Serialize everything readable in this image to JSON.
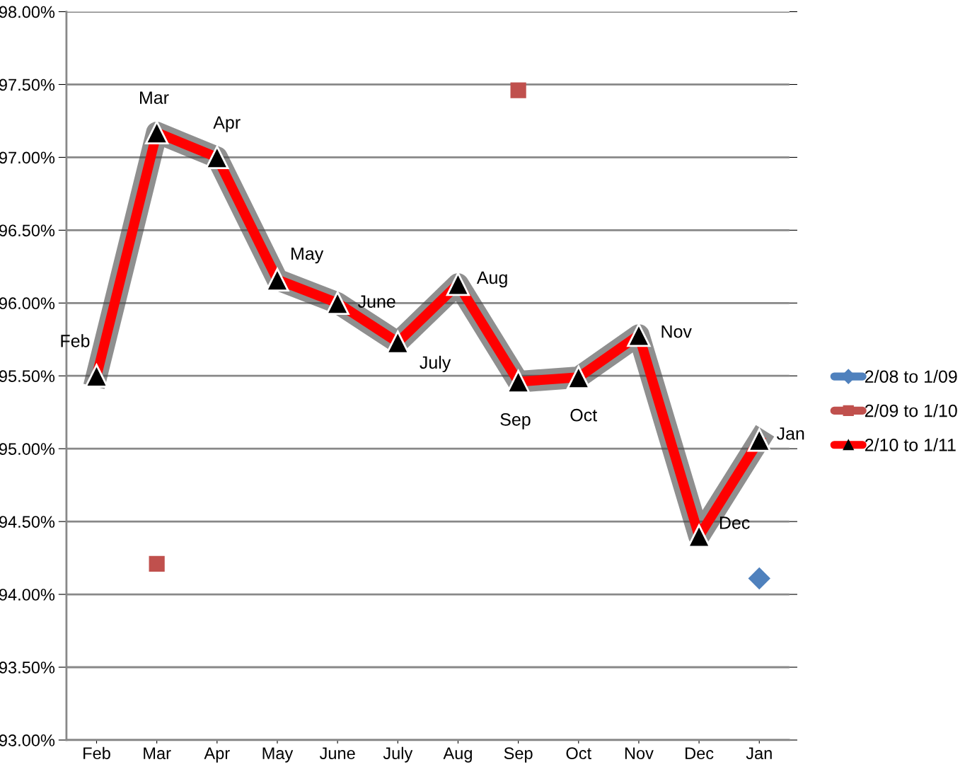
{
  "chart_data": {
    "type": "line",
    "categories": [
      "Feb",
      "Mar",
      "Apr",
      "May",
      "June",
      "July",
      "Aug",
      "Sep",
      "Oct",
      "Nov",
      "Dec",
      "Jan"
    ],
    "series": [
      {
        "name": "2/08 to 1/09",
        "type": "scatter",
        "color": "#4f81bd",
        "marker": "diamond",
        "values": [
          null,
          null,
          null,
          null,
          null,
          null,
          null,
          null,
          null,
          null,
          null,
          94.11
        ]
      },
      {
        "name": "2/09 to 1/10",
        "type": "scatter",
        "color": "#c0504d",
        "marker": "square",
        "values": [
          null,
          94.21,
          null,
          null,
          null,
          null,
          null,
          97.46,
          null,
          null,
          null,
          null
        ]
      },
      {
        "name": "2/10 to 1/11",
        "color": "#ff0000",
        "marker": "triangle",
        "values": [
          95.5,
          97.17,
          97.0,
          96.16,
          96.0,
          95.73,
          96.13,
          95.46,
          95.49,
          95.78,
          94.4,
          95.06
        ]
      }
    ],
    "annotations": [
      {
        "text": "Feb",
        "x": "Feb",
        "y": 95.5
      },
      {
        "text": "Mar",
        "x": "Mar",
        "y": 97.17
      },
      {
        "text": "Apr",
        "x": "Apr",
        "y": 97.0
      },
      {
        "text": "May",
        "x": "May",
        "y": 96.16
      },
      {
        "text": "June",
        "x": "June",
        "y": 96.0
      },
      {
        "text": "July",
        "x": "July",
        "y": 95.73
      },
      {
        "text": "Aug",
        "x": "Aug",
        "y": 96.13
      },
      {
        "text": "Sep",
        "x": "Sep",
        "y": 95.46
      },
      {
        "text": "Oct",
        "x": "Oct",
        "y": 95.49
      },
      {
        "text": "Nov",
        "x": "Nov",
        "y": 95.78
      },
      {
        "text": "Dec",
        "x": "Dec",
        "y": 94.4
      },
      {
        "text": "Jan",
        "x": "Jan",
        "y": 95.06
      }
    ],
    "ylim": [
      93,
      98
    ],
    "yticks": [
      {
        "value": 93,
        "label": "93.00%"
      },
      {
        "value": 93.5,
        "label": "93.50%"
      },
      {
        "value": 94,
        "label": "94.00%"
      },
      {
        "value": 94.5,
        "label": "94.50%"
      },
      {
        "value": 95,
        "label": "95.00%"
      },
      {
        "value": 95.5,
        "label": "95.50%"
      },
      {
        "value": 96,
        "label": "96.00%"
      },
      {
        "value": 96.5,
        "label": "96.50%"
      },
      {
        "value": 97,
        "label": "97.00%"
      },
      {
        "value": 97.5,
        "label": "97.50%"
      },
      {
        "value": 98,
        "label": "98.00%"
      }
    ],
    "grid": "y",
    "legend": "right",
    "line_style": "solid"
  }
}
